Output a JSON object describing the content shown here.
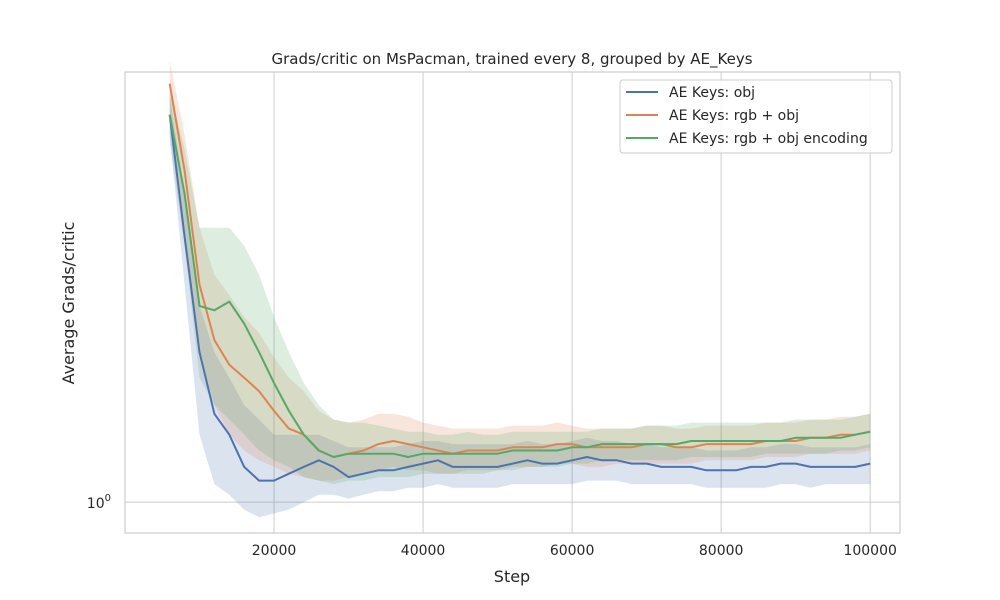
{
  "chart_data": {
    "type": "line",
    "title": "Grads/critic on MsPacman, trained every 8, grouped by AE_Keys",
    "xlabel": "Step",
    "ylabel": "Average Grads/critic",
    "y_scale": "log",
    "xlim": [
      0,
      104000
    ],
    "ylim": [
      0.92,
      3.2
    ],
    "x_ticks": [
      20000,
      40000,
      60000,
      80000,
      100000
    ],
    "x_tick_labels": [
      "20000",
      "40000",
      "60000",
      "80000",
      "100000"
    ],
    "y_ticks": [
      1
    ],
    "y_tick_labels": [
      "10^0"
    ],
    "grid": true,
    "legend_position": "top-right",
    "x": [
      6000,
      8000,
      10000,
      12000,
      14000,
      16000,
      18000,
      20000,
      22000,
      24000,
      26000,
      28000,
      30000,
      32000,
      34000,
      36000,
      38000,
      40000,
      42000,
      44000,
      46000,
      48000,
      50000,
      52000,
      54000,
      56000,
      58000,
      60000,
      62000,
      64000,
      66000,
      68000,
      70000,
      72000,
      74000,
      76000,
      78000,
      80000,
      82000,
      84000,
      86000,
      88000,
      90000,
      92000,
      94000,
      96000,
      98000,
      100000
    ],
    "series": [
      {
        "name": "AE Keys: obj",
        "color": "#4c72b0",
        "values": [
          2.85,
          2.05,
          1.5,
          1.27,
          1.2,
          1.1,
          1.06,
          1.06,
          1.08,
          1.1,
          1.12,
          1.1,
          1.07,
          1.08,
          1.09,
          1.09,
          1.1,
          1.11,
          1.12,
          1.1,
          1.1,
          1.1,
          1.1,
          1.11,
          1.12,
          1.11,
          1.11,
          1.12,
          1.13,
          1.12,
          1.12,
          1.11,
          1.11,
          1.1,
          1.1,
          1.1,
          1.09,
          1.09,
          1.09,
          1.1,
          1.1,
          1.11,
          1.11,
          1.1,
          1.1,
          1.1,
          1.1,
          1.11
        ],
        "lower": [
          2.7,
          1.8,
          1.2,
          1.05,
          1.02,
          0.98,
          0.96,
          0.97,
          0.98,
          1.0,
          1.02,
          1.02,
          1.01,
          1.02,
          1.03,
          1.03,
          1.04,
          1.04,
          1.05,
          1.04,
          1.04,
          1.04,
          1.04,
          1.05,
          1.05,
          1.05,
          1.05,
          1.05,
          1.06,
          1.06,
          1.06,
          1.05,
          1.05,
          1.05,
          1.05,
          1.05,
          1.04,
          1.04,
          1.04,
          1.04,
          1.04,
          1.05,
          1.05,
          1.04,
          1.05,
          1.05,
          1.05,
          1.05
        ],
        "upper": [
          3.0,
          2.3,
          1.7,
          1.5,
          1.4,
          1.3,
          1.25,
          1.2,
          1.2,
          1.2,
          1.2,
          1.18,
          1.16,
          1.16,
          1.16,
          1.16,
          1.17,
          1.18,
          1.18,
          1.17,
          1.17,
          1.17,
          1.17,
          1.17,
          1.18,
          1.17,
          1.17,
          1.18,
          1.19,
          1.18,
          1.18,
          1.17,
          1.17,
          1.16,
          1.16,
          1.16,
          1.15,
          1.15,
          1.15,
          1.16,
          1.16,
          1.17,
          1.17,
          1.16,
          1.16,
          1.16,
          1.16,
          1.17
        ]
      },
      {
        "name": "AE Keys: rgb + obj",
        "color": "#dd8452",
        "values": [
          3.1,
          2.45,
          1.8,
          1.55,
          1.45,
          1.4,
          1.35,
          1.28,
          1.22,
          1.2,
          1.15,
          1.13,
          1.14,
          1.15,
          1.17,
          1.18,
          1.17,
          1.16,
          1.15,
          1.14,
          1.15,
          1.15,
          1.15,
          1.16,
          1.16,
          1.16,
          1.17,
          1.17,
          1.16,
          1.16,
          1.16,
          1.16,
          1.17,
          1.17,
          1.16,
          1.16,
          1.17,
          1.17,
          1.17,
          1.17,
          1.18,
          1.18,
          1.18,
          1.19,
          1.19,
          1.2,
          1.2,
          1.21
        ],
        "lower": [
          2.9,
          2.1,
          1.5,
          1.3,
          1.2,
          1.15,
          1.12,
          1.1,
          1.08,
          1.07,
          1.06,
          1.06,
          1.07,
          1.08,
          1.09,
          1.1,
          1.09,
          1.09,
          1.08,
          1.08,
          1.09,
          1.09,
          1.09,
          1.1,
          1.1,
          1.1,
          1.11,
          1.11,
          1.1,
          1.1,
          1.11,
          1.11,
          1.11,
          1.11,
          1.11,
          1.11,
          1.12,
          1.12,
          1.12,
          1.12,
          1.13,
          1.13,
          1.13,
          1.14,
          1.14,
          1.14,
          1.14,
          1.15
        ],
        "upper": [
          3.3,
          2.7,
          2.1,
          1.85,
          1.75,
          1.65,
          1.58,
          1.48,
          1.4,
          1.35,
          1.28,
          1.25,
          1.24,
          1.25,
          1.27,
          1.27,
          1.26,
          1.24,
          1.23,
          1.22,
          1.22,
          1.22,
          1.22,
          1.23,
          1.23,
          1.23,
          1.24,
          1.23,
          1.22,
          1.22,
          1.22,
          1.22,
          1.23,
          1.23,
          1.22,
          1.22,
          1.23,
          1.23,
          1.23,
          1.23,
          1.24,
          1.24,
          1.24,
          1.25,
          1.25,
          1.26,
          1.26,
          1.27
        ]
      },
      {
        "name": "AE Keys: rgb + obj encoding",
        "color": "#55a868",
        "values": [
          2.85,
          2.3,
          1.7,
          1.68,
          1.72,
          1.62,
          1.5,
          1.38,
          1.28,
          1.2,
          1.15,
          1.13,
          1.14,
          1.14,
          1.14,
          1.14,
          1.13,
          1.14,
          1.14,
          1.14,
          1.14,
          1.14,
          1.14,
          1.15,
          1.15,
          1.15,
          1.15,
          1.16,
          1.16,
          1.17,
          1.17,
          1.17,
          1.17,
          1.17,
          1.17,
          1.18,
          1.18,
          1.18,
          1.18,
          1.18,
          1.18,
          1.18,
          1.19,
          1.19,
          1.19,
          1.19,
          1.2,
          1.21
        ],
        "lower": [
          2.65,
          2.0,
          1.4,
          1.3,
          1.25,
          1.2,
          1.15,
          1.12,
          1.1,
          1.07,
          1.06,
          1.05,
          1.06,
          1.06,
          1.07,
          1.07,
          1.07,
          1.08,
          1.08,
          1.08,
          1.08,
          1.08,
          1.09,
          1.09,
          1.1,
          1.1,
          1.1,
          1.11,
          1.11,
          1.12,
          1.12,
          1.12,
          1.12,
          1.12,
          1.12,
          1.13,
          1.13,
          1.13,
          1.13,
          1.13,
          1.14,
          1.14,
          1.14,
          1.14,
          1.14,
          1.15,
          1.15,
          1.16
        ],
        "upper": [
          3.05,
          2.6,
          2.1,
          2.1,
          2.1,
          2.0,
          1.85,
          1.65,
          1.5,
          1.38,
          1.3,
          1.25,
          1.24,
          1.24,
          1.23,
          1.22,
          1.21,
          1.21,
          1.2,
          1.2,
          1.21,
          1.2,
          1.2,
          1.21,
          1.21,
          1.21,
          1.21,
          1.21,
          1.21,
          1.22,
          1.22,
          1.22,
          1.23,
          1.23,
          1.23,
          1.24,
          1.24,
          1.24,
          1.24,
          1.24,
          1.24,
          1.24,
          1.25,
          1.25,
          1.25,
          1.25,
          1.26,
          1.27
        ]
      }
    ]
  }
}
